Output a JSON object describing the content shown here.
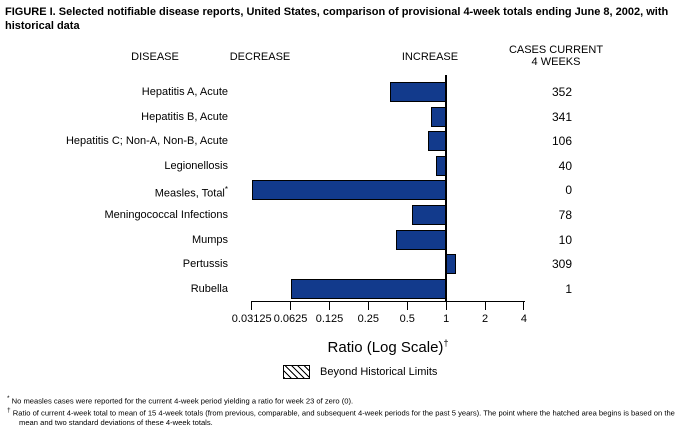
{
  "title": "FIGURE I. Selected notifiable disease reports, United States, comparison of provisional 4-week totals ending June 8, 2002, with historical data",
  "headers": {
    "disease": "DISEASE",
    "decrease": "DECREASE",
    "increase": "INCREASE",
    "cases_line1": "CASES CURRENT",
    "cases_line2": "4 WEEKS"
  },
  "chart_data": {
    "type": "bar",
    "orientation": "horizontal",
    "x_scale": "log2",
    "xlabel": "Ratio (Log Scale)",
    "xlabel_superscript": "†",
    "xlim": [
      0.03125,
      4
    ],
    "baseline_ratio": 1,
    "x_ticks": [
      0.03125,
      0.0625,
      0.125,
      0.25,
      0.5,
      1,
      2,
      4
    ],
    "x_tick_labels": [
      "0.03125",
      "0.0625",
      "0.125",
      "0.25",
      "0.5",
      "1",
      "2",
      "4"
    ],
    "rows": [
      {
        "disease": "Hepatitis A, Acute",
        "ratio": 0.37,
        "cases": "352",
        "beyond_historical_limits": false
      },
      {
        "disease": "Hepatitis B, Acute",
        "ratio": 0.77,
        "cases": "341",
        "beyond_historical_limits": false
      },
      {
        "disease": "Hepatitis C; Non-A, Non-B, Acute",
        "ratio": 0.73,
        "cases": "106",
        "beyond_historical_limits": false
      },
      {
        "disease": "Legionellosis",
        "ratio": 0.83,
        "cases": "40",
        "beyond_historical_limits": false
      },
      {
        "disease": "Measles, Total",
        "label_superscript": "*",
        "ratio": 0,
        "cases": "0",
        "beyond_historical_limits": false
      },
      {
        "disease": "Meningococcal Infections",
        "ratio": 0.54,
        "cases": "78",
        "beyond_historical_limits": false
      },
      {
        "disease": "Mumps",
        "ratio": 0.41,
        "cases": "10",
        "beyond_historical_limits": false
      },
      {
        "disease": "Pertussis",
        "ratio": 1.19,
        "cases": "309",
        "beyond_historical_limits": false
      },
      {
        "disease": "Rubella",
        "ratio": 0.0625,
        "cases": "1",
        "beyond_historical_limits": false
      }
    ]
  },
  "legend": {
    "label": "Beyond Historical Limits",
    "swatch": "hatched"
  },
  "footnotes": [
    {
      "marker": "*",
      "text": "No measles cases were reported for the current 4-week period yielding a ratio for week 23 of zero (0)."
    },
    {
      "marker": "†",
      "text": "Ratio of current 4-week total to mean of 15 4-week totals (from previous, comparable, and subsequent 4-week periods for the past 5 years). The point where the hatched area begins is based on the mean and two standard deviations of these 4-week totals."
    }
  ],
  "colors": {
    "bar": "#123a8c",
    "bar_border": "#000000",
    "background": "#ffffff",
    "text": "#000000"
  }
}
